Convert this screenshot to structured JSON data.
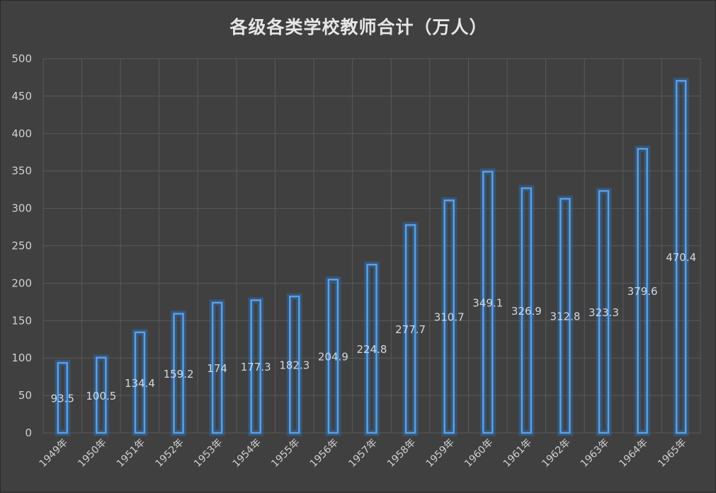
{
  "chart_data": {
    "type": "bar",
    "title": "各级各类学校教师合计（万人）",
    "categories": [
      "1949年",
      "1950年",
      "1951年",
      "1952年",
      "1953年",
      "1954年",
      "1955年",
      "1956年",
      "1957年",
      "1958年",
      "1959年",
      "1960年",
      "1961年",
      "1962年",
      "1963年",
      "1964年",
      "1965年"
    ],
    "values": [
      93.5,
      100.5,
      134.4,
      159.2,
      174,
      177.3,
      182.3,
      204.9,
      224.8,
      277.7,
      310.7,
      349.1,
      326.9,
      312.8,
      323.3,
      379.6,
      470.4
    ],
    "value_labels": [
      "93.5",
      "100.5",
      "134.4",
      "159.2",
      "174",
      "177.3",
      "182.3",
      "204.9",
      "224.8",
      "277.7",
      "310.7",
      "349.1",
      "326.9",
      "312.8",
      "323.3",
      "379.6",
      "470.4"
    ],
    "yticks": [
      "0",
      "50",
      "100",
      "150",
      "200",
      "250",
      "300",
      "350",
      "400",
      "450",
      "500"
    ],
    "ylim": [
      0,
      500
    ],
    "xlabel": "",
    "ylabel": "",
    "grid": true,
    "legend": "none",
    "colors": {
      "bar_stroke": "#5aa0e6",
      "bar_glow": "#2c6fb5",
      "background": "#404040"
    }
  }
}
